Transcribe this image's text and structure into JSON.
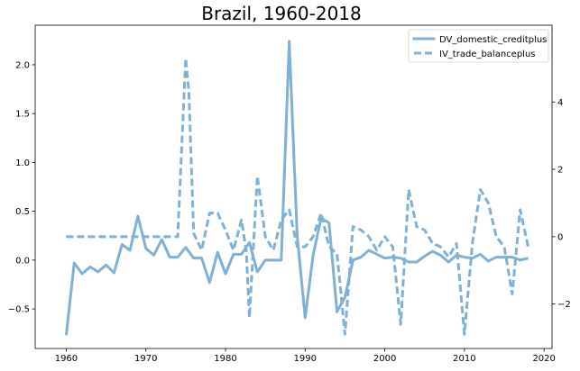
{
  "chart_data": {
    "type": "line",
    "title": "Brazil, 1960-2018",
    "xlabel": "",
    "ylabel": "",
    "xlim": [
      1956.1,
      2021.0
    ],
    "ylim_left": [
      -0.905,
      2.405
    ],
    "ylim_right": [
      -3.32,
      6.28
    ],
    "xticks": [
      1960,
      1970,
      1980,
      1990,
      2000,
      2010,
      2020
    ],
    "yticks_left": [
      "−0.5",
      "0.0",
      "0.5",
      "1.0",
      "1.5",
      "2.0"
    ],
    "yticks_left_values": [
      -0.5,
      0.0,
      0.5,
      1.0,
      1.5,
      2.0
    ],
    "yticks_right": [
      "−2",
      "0",
      "2",
      "4"
    ],
    "yticks_right_values": [
      -2,
      0,
      2,
      4
    ],
    "grid": false,
    "legend_position": "top-right",
    "color": "#7fb1d6",
    "series": [
      {
        "name": "DV_domestic_creditplus",
        "axis": "left",
        "style": "solid",
        "x": [
          1960,
          1961,
          1962,
          1963,
          1964,
          1965,
          1966,
          1967,
          1968,
          1969,
          1970,
          1971,
          1972,
          1973,
          1974,
          1975,
          1976,
          1977,
          1978,
          1979,
          1980,
          1981,
          1982,
          1983,
          1984,
          1985,
          1986,
          1987,
          1988,
          1989,
          1990,
          1991,
          1992,
          1993,
          1994,
          1995,
          1996,
          1997,
          1998,
          1999,
          2000,
          2001,
          2002,
          2003,
          2004,
          2005,
          2006,
          2007,
          2008,
          2009,
          2010,
          2011,
          2012,
          2013,
          2014,
          2015,
          2016,
          2017,
          2018
        ],
        "values": [
          -0.77,
          -0.03,
          -0.14,
          -0.07,
          -0.12,
          -0.05,
          -0.13,
          0.16,
          0.1,
          0.45,
          0.12,
          0.05,
          0.21,
          0.03,
          0.03,
          0.13,
          0.02,
          0.02,
          -0.23,
          0.08,
          -0.14,
          0.06,
          0.06,
          0.18,
          -0.12,
          0.0,
          0.0,
          0.0,
          2.24,
          0.25,
          -0.59,
          0.05,
          0.43,
          0.38,
          -0.53,
          -0.38,
          0.0,
          0.03,
          0.1,
          0.06,
          0.02,
          0.03,
          0.02,
          -0.02,
          -0.02,
          0.04,
          0.09,
          0.05,
          -0.02,
          0.05,
          0.03,
          0.02,
          0.06,
          -0.01,
          0.03,
          0.03,
          0.03,
          0.0,
          0.02
        ]
      },
      {
        "name": "IV_trade_balanceplus",
        "axis": "right",
        "style": "dashed",
        "x": [
          1960,
          1961,
          1962,
          1963,
          1964,
          1965,
          1966,
          1967,
          1968,
          1969,
          1970,
          1971,
          1972,
          1973,
          1974,
          1975,
          1975.4,
          1976,
          1977,
          1978,
          1979,
          1980,
          1981,
          1982,
          1982.6,
          1983,
          1984,
          1985,
          1986,
          1987,
          1988,
          1989,
          1990,
          1991,
          1992,
          1993,
          1994,
          1995,
          1996,
          1997,
          1998,
          1999,
          2000,
          2001,
          2002,
          2003,
          2004,
          2005,
          2006,
          2007,
          2008,
          2009,
          2010,
          2011,
          2012,
          2013,
          2014,
          2015,
          2016,
          2017,
          2018
        ],
        "values": [
          0,
          0,
          0,
          0,
          0,
          0,
          0,
          0,
          0,
          0,
          0,
          0,
          0,
          0,
          0,
          5.3,
          4.3,
          0.1,
          -0.4,
          0.7,
          0.7,
          0.2,
          -0.4,
          0.5,
          -0.4,
          -2.4,
          1.8,
          0.0,
          -0.4,
          0.5,
          0.8,
          -0.3,
          -0.3,
          0.0,
          0.7,
          -0.3,
          -0.5,
          -2.9,
          0.3,
          0.2,
          0.0,
          -0.4,
          0.0,
          -0.3,
          -2.6,
          1.4,
          0.3,
          0.2,
          -0.2,
          -0.3,
          -0.6,
          -0.2,
          -2.9,
          -0.2,
          1.4,
          1.0,
          0.0,
          -0.3,
          -1.7,
          0.8,
          -0.3
        ]
      }
    ]
  }
}
